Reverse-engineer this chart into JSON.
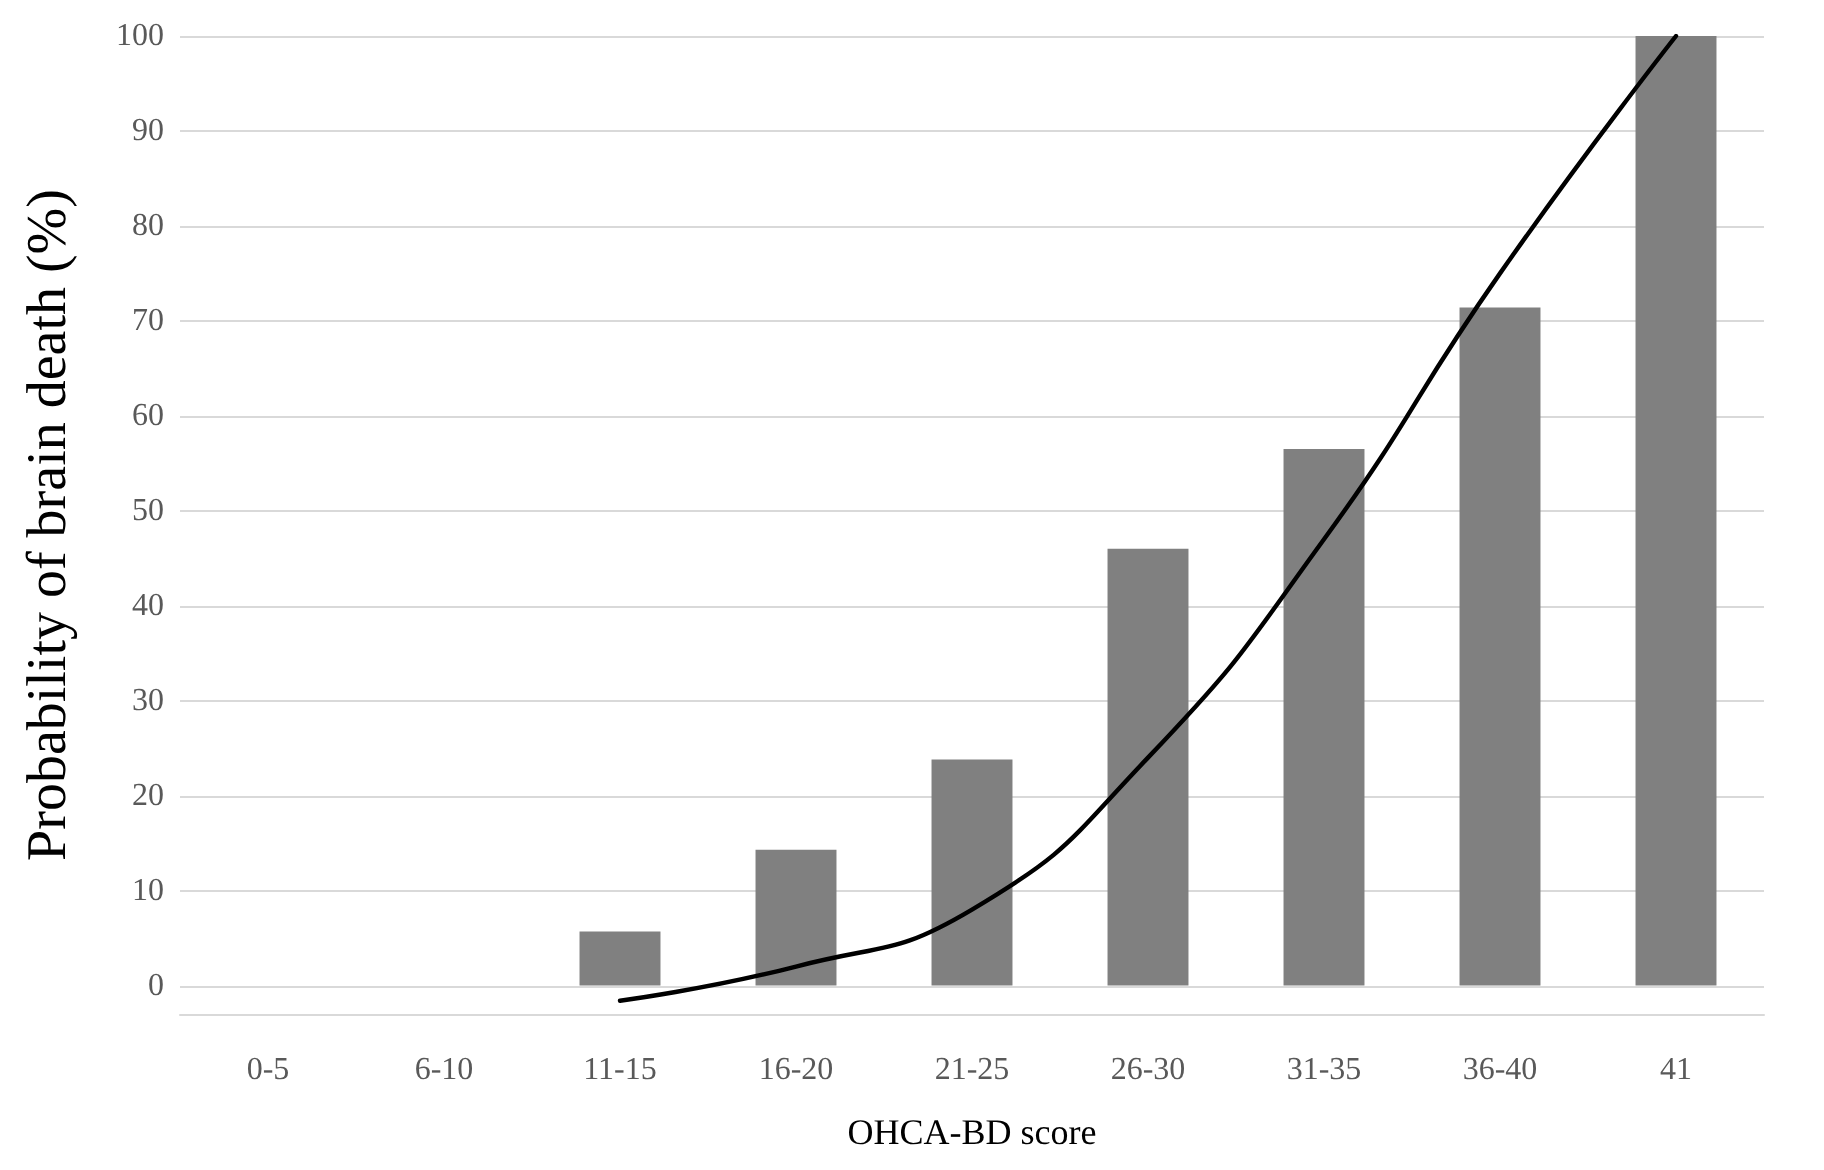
{
  "chart_data": {
    "type": "bar",
    "xlabel": "OHCA-BD score",
    "ylabel": "Probability of brain death (%)",
    "categories": [
      "0-5",
      "6-10",
      "11-15",
      "16-20",
      "21-25",
      "26-30",
      "31-35",
      "36-40",
      "41"
    ],
    "series": [
      {
        "color": "#808080",
        "values": [
          0,
          0,
          5.7,
          14.3,
          23.8,
          46,
          56.5,
          71.4,
          100
        ]
      },
      {
        "type": "line",
        "color": "#000000",
        "values": [
          null,
          null,
          -1.6,
          2,
          8,
          24,
          47,
          75,
          100
        ]
      }
    ],
    "ylim": [
      -3,
      100
    ],
    "yticks": [
      0,
      10,
      20,
      30,
      40,
      50,
      60,
      70,
      80,
      90,
      100
    ],
    "grid": "y",
    "marker": "none",
    "line_style": "solid"
  }
}
